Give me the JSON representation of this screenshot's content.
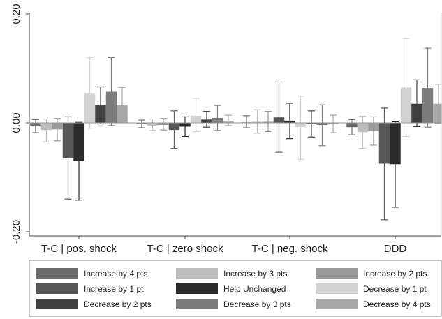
{
  "chart_data": {
    "type": "bar",
    "title": "",
    "xlabel": "",
    "ylabel": "",
    "ylim": [
      -0.22,
      0.22
    ],
    "yticks": [
      -0.2,
      0.0,
      0.2
    ],
    "ytick_labels": [
      "-0.20",
      "0.00",
      "0.20"
    ],
    "grid": false,
    "legend_position": "bottom",
    "error_bars": true,
    "categories": [
      "T-C | pos. shock",
      "T-C | zero shock",
      "T-C | neg. shock",
      "DDD"
    ],
    "series": [
      {
        "name": "Increase by 4 pts",
        "color": "#6b6b6b",
        "values": [
          -0.005,
          -0.002,
          0.001,
          -0.008
        ],
        "ci_low": [
          -0.018,
          -0.009,
          -0.009,
          -0.022
        ],
        "ci_high": [
          0.006,
          0.005,
          0.013,
          0.006
        ]
      },
      {
        "name": "Increase by 3 pts",
        "color": "#bdbdbd",
        "values": [
          -0.013,
          -0.005,
          0.002,
          -0.017
        ],
        "ci_low": [
          -0.035,
          -0.014,
          -0.019,
          -0.047
        ],
        "ci_high": [
          0.007,
          0.007,
          0.024,
          0.012
        ]
      },
      {
        "name": "Increase by 2 pts",
        "color": "#9a9a9a",
        "values": [
          -0.012,
          -0.004,
          0.002,
          -0.015
        ],
        "ci_low": [
          -0.033,
          -0.013,
          -0.016,
          -0.041
        ],
        "ci_high": [
          0.008,
          0.008,
          0.021,
          0.011
        ]
      },
      {
        "name": "Increase by 1 pt",
        "color": "#575757",
        "values": [
          -0.065,
          -0.013,
          0.01,
          -0.075
        ],
        "ci_low": [
          -0.14,
          -0.047,
          -0.054,
          -0.178
        ],
        "ci_high": [
          0.011,
          0.022,
          0.075,
          0.027
        ]
      },
      {
        "name": "Help Unchanged",
        "color": "#2b2b2b",
        "values": [
          -0.07,
          -0.007,
          0.004,
          -0.076
        ],
        "ci_low": [
          -0.142,
          -0.025,
          -0.029,
          -0.155
        ],
        "ci_high": [
          0.001,
          0.011,
          0.036,
          0.002
        ]
      },
      {
        "name": "Decrease by 1 pt",
        "color": "#d2d2d2",
        "values": [
          0.055,
          0.013,
          -0.008,
          0.065
        ],
        "ci_low": [
          -0.01,
          -0.016,
          -0.067,
          -0.025
        ],
        "ci_high": [
          0.12,
          0.045,
          0.049,
          0.155
        ]
      },
      {
        "name": "Decrease by 2 pts",
        "color": "#404040",
        "values": [
          0.032,
          0.006,
          -0.002,
          0.035
        ],
        "ci_low": [
          -0.002,
          -0.008,
          -0.026,
          -0.007
        ],
        "ci_high": [
          0.066,
          0.021,
          0.022,
          0.079
        ]
      },
      {
        "name": "Decrease by 3 pts",
        "color": "#7c7c7c",
        "values": [
          0.057,
          0.009,
          -0.004,
          0.064
        ],
        "ci_low": [
          -0.005,
          -0.014,
          -0.042,
          -0.008
        ],
        "ci_high": [
          0.12,
          0.032,
          0.033,
          0.137
        ]
      },
      {
        "name": "Decrease by 4 pts",
        "color": "#a8a8a8",
        "values": [
          0.032,
          0.004,
          -0.002,
          0.035
        ],
        "ci_low": [
          0.0,
          -0.005,
          -0.018,
          -0.001
        ],
        "ci_high": [
          0.065,
          0.014,
          0.014,
          0.071
        ]
      }
    ],
    "legend_order": [
      "Increase by 4 pts",
      "Increase by 3 pts",
      "Increase by 2 pts",
      "Increase by 1 pt",
      "Help Unchanged",
      "Decrease by 1 pt",
      "Decrease by 2 pts",
      "Decrease by 3 pts",
      "Decrease by 4 pts"
    ]
  }
}
